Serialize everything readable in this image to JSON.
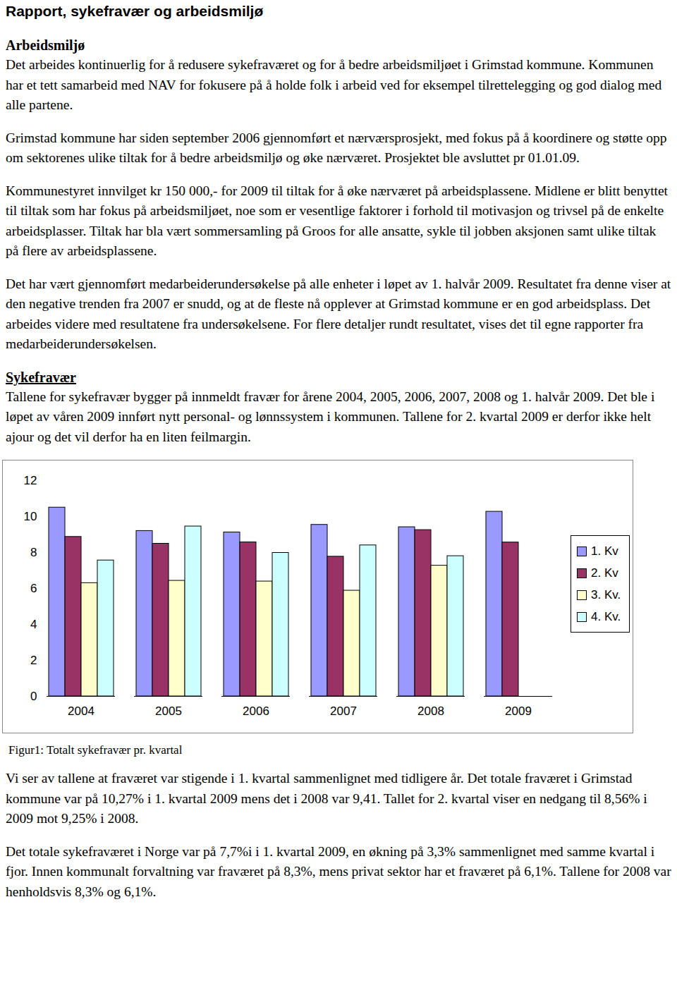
{
  "document": {
    "title": "Rapport, sykefravær og arbeidsmiljø",
    "sections": [
      {
        "heading": "Arbeidsmiljø",
        "paragraphs": [
          "Det arbeides kontinuerlig for å redusere sykefraværet og for å bedre arbeidsmiljøet i Grimstad kommune. Kommunen har et tett samarbeid med NAV for fokusere på å holde folk i arbeid ved for eksempel tilrettelegging og god dialog med alle partene.",
          "Grimstad kommune har siden september 2006 gjennomført et nærværsprosjekt, med fokus på å koordinere og støtte opp om sektorenes ulike tiltak for å bedre arbeidsmiljø og øke nærværet. Prosjektet ble avsluttet pr 01.01.09.",
          "Kommunestyret innvilget kr 150 000,- for 2009 til tiltak for å øke nærværet på arbeidsplassene. Midlene er blitt benyttet til tiltak som har fokus på arbeidsmiljøet, noe som er vesentlige faktorer i forhold til motivasjon og trivsel på de enkelte arbeidsplasser. Tiltak har bla vært sommersamling på Groos for alle ansatte, sykle til jobben aksjonen samt ulike tiltak på flere av arbeidsplassene.",
          "Det har vært gjennomført medarbeiderundersøkelse på alle enheter i løpet av 1. halvår 2009. Resultatet fra denne viser at den negative trenden fra 2007 er snudd, og at de fleste nå opplever at Grimstad kommune er en god arbeidsplass. Det arbeides videre med resultatene fra undersøkelsene. For flere detaljer rundt resultatet, vises det til egne rapporter fra medarbeiderundersøkelsen."
        ]
      },
      {
        "heading": "Sykefravær",
        "paragraphs": [
          "Tallene for sykefravær bygger på innmeldt fravær for årene 2004, 2005, 2006, 2007, 2008 og 1. halvår 2009. Det ble i løpet av våren 2009 innført nytt personal- og lønnssystem i kommunen. Tallene for 2. kvartal 2009 er derfor ikke helt ajour og det vil derfor ha en liten feilmargin."
        ]
      }
    ],
    "figure_caption": "Figur1: Totalt sykefravær pr. kvartal",
    "after_figure": [
      "Vi ser av tallene at fraværet var stigende i 1. kvartal sammenlignet med tidligere år. Det totale fraværet i Grimstad kommune var på 10,27% i 1. kvartal 2009 mens det i 2008 var 9,41. Tallet for 2. kvartal viser en nedgang til 8,56% i 2009 mot 9,25% i 2008.",
      "Det totale sykefraværet i Norge var på 7,7%i i 1. kvartal 2009, en økning på 3,3% sammenlignet med samme kvartal i fjor. Innen kommunalt forvaltning var fraværet på 8,3%, mens privat sektor har et fraværet på 6,1%. Tallene for 2008 var henholdsvis 8,3% og 6,1%."
    ]
  },
  "chart_data": {
    "type": "bar",
    "categories": [
      "2004",
      "2005",
      "2006",
      "2007",
      "2008",
      "2009"
    ],
    "series": [
      {
        "name": "1. Kv",
        "color": "#9999ff",
        "values": [
          10.5,
          9.2,
          9.12,
          9.54,
          9.41,
          10.27
        ]
      },
      {
        "name": "2. Kv",
        "color": "#993366",
        "values": [
          8.87,
          8.49,
          8.57,
          7.77,
          9.25,
          8.56
        ]
      },
      {
        "name": "3. Kv.",
        "color": "#ffffcc",
        "values": [
          6.3,
          6.43,
          6.39,
          5.88,
          7.27,
          null
        ]
      },
      {
        "name": "4. Kv.",
        "color": "#ccffff",
        "values": [
          7.56,
          9.45,
          7.98,
          8.4,
          7.8,
          null
        ]
      }
    ],
    "ylim": [
      0,
      12
    ],
    "yticks": [
      0,
      2,
      4,
      6,
      8,
      10,
      12
    ],
    "grid": false,
    "legend": "right"
  }
}
